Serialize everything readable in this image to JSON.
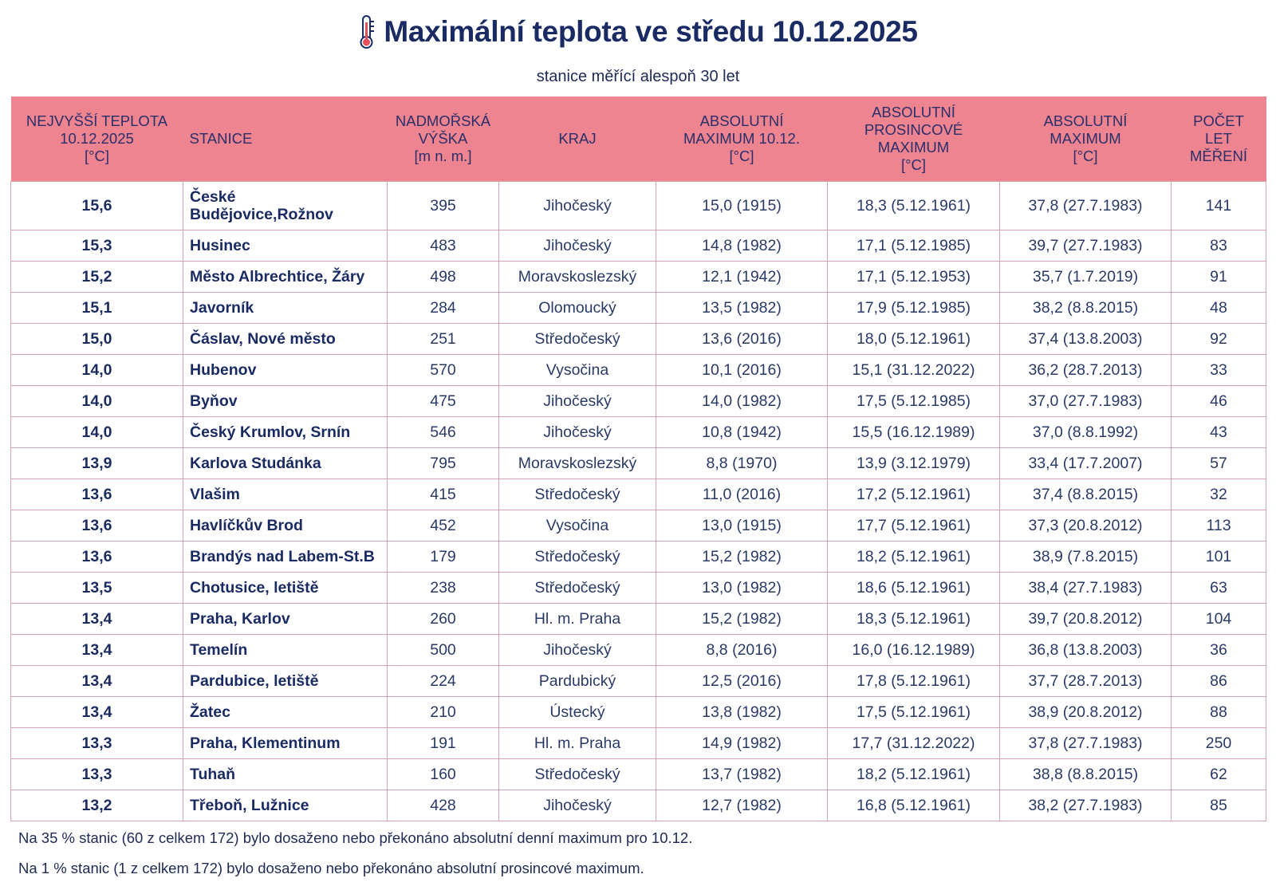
{
  "header": {
    "title": "Maximální teplota ve středu 10.12.2025",
    "icon": "thermometer-icon",
    "subtitle": "stanice měřící alespoň 30 let"
  },
  "colors": {
    "header_bg": "#ee8490",
    "title": "#1a2b63",
    "grid": "#d9a3ad"
  },
  "table": {
    "columns": [
      "NEJVYŠŠÍ TEPLOTA\n10.12.2025\n[°C]",
      "STANICE",
      "NADMOŘSKÁ\nVÝŠKA\n[m n. m.]",
      "KRAJ",
      "ABSOLUTNÍ\nMAXIMUM 10.12.\n[°C]",
      "ABSOLUTNÍ\nPROSINCOVÉ\nMAXIMUM\n[°C]",
      "ABSOLUTNÍ\nMAXIMUM\n[°C]",
      "POČET\nLET\nMĚŘENÍ"
    ],
    "rows": [
      [
        "15,6",
        "České Budějovice,Rožnov",
        "395",
        "Jihočeský",
        "15,0 (1915)",
        "18,3 (5.12.1961)",
        "37,8 (27.7.1983)",
        "141"
      ],
      [
        "15,3",
        "Husinec",
        "483",
        "Jihočeský",
        "14,8 (1982)",
        "17,1 (5.12.1985)",
        "39,7 (27.7.1983)",
        "83"
      ],
      [
        "15,2",
        "Město Albrechtice, Žáry",
        "498",
        "Moravskoslezský",
        "12,1 (1942)",
        "17,1 (5.12.1953)",
        "35,7 (1.7.2019)",
        "91"
      ],
      [
        "15,1",
        "Javorník",
        "284",
        "Olomoucký",
        "13,5 (1982)",
        "17,9 (5.12.1985)",
        "38,2 (8.8.2015)",
        "48"
      ],
      [
        "15,0",
        "Čáslav, Nové město",
        "251",
        "Středočeský",
        "13,6 (2016)",
        "18,0 (5.12.1961)",
        "37,4 (13.8.2003)",
        "92"
      ],
      [
        "14,0",
        "Hubenov",
        "570",
        "Vysočina",
        "10,1 (2016)",
        "15,1 (31.12.2022)",
        "36,2 (28.7.2013)",
        "33"
      ],
      [
        "14,0",
        "Byňov",
        "475",
        "Jihočeský",
        "14,0 (1982)",
        "17,5 (5.12.1985)",
        "37,0 (27.7.1983)",
        "46"
      ],
      [
        "14,0",
        "Český Krumlov, Srnín",
        "546",
        "Jihočeský",
        "10,8 (1942)",
        "15,5 (16.12.1989)",
        "37,0 (8.8.1992)",
        "43"
      ],
      [
        "13,9",
        "Karlova Studánka",
        "795",
        "Moravskoslezský",
        "8,8 (1970)",
        "13,9 (3.12.1979)",
        "33,4 (17.7.2007)",
        "57"
      ],
      [
        "13,6",
        "Vlašim",
        "415",
        "Středočeský",
        "11,0 (2016)",
        "17,2 (5.12.1961)",
        "37,4 (8.8.2015)",
        "32"
      ],
      [
        "13,6",
        "Havlíčkův Brod",
        "452",
        "Vysočina",
        "13,0 (1915)",
        "17,7 (5.12.1961)",
        "37,3 (20.8.2012)",
        "113"
      ],
      [
        "13,6",
        "Brandýs nad Labem-St.B",
        "179",
        "Středočeský",
        "15,2 (1982)",
        "18,2 (5.12.1961)",
        "38,9 (7.8.2015)",
        "101"
      ],
      [
        "13,5",
        "Chotusice, letiště",
        "238",
        "Středočeský",
        "13,0 (1982)",
        "18,6 (5.12.1961)",
        "38,4 (27.7.1983)",
        "63"
      ],
      [
        "13,4",
        "Praha, Karlov",
        "260",
        "Hl. m. Praha",
        "15,2 (1982)",
        "18,3 (5.12.1961)",
        "39,7 (20.8.2012)",
        "104"
      ],
      [
        "13,4",
        "Temelín",
        "500",
        "Jihočeský",
        "8,8 (2016)",
        "16,0 (16.12.1989)",
        "36,8 (13.8.2003)",
        "36"
      ],
      [
        "13,4",
        "Pardubice, letiště",
        "224",
        "Pardubický",
        "12,5 (2016)",
        "17,8 (5.12.1961)",
        "37,7 (28.7.2013)",
        "86"
      ],
      [
        "13,4",
        "Žatec",
        "210",
        "Ústecký",
        "13,8 (1982)",
        "17,5 (5.12.1961)",
        "38,9 (20.8.2012)",
        "88"
      ],
      [
        "13,3",
        "Praha, Klementinum",
        "191",
        "Hl. m. Praha",
        "14,9 (1982)",
        "17,7 (31.12.2022)",
        "37,8 (27.7.1983)",
        "250"
      ],
      [
        "13,3",
        "Tuhaň",
        "160",
        "Středočeský",
        "13,7 (1982)",
        "18,2 (5.12.1961)",
        "38,8 (8.8.2015)",
        "62"
      ],
      [
        "13,2",
        "Třeboň, Lužnice",
        "428",
        "Jihočeský",
        "12,7 (1982)",
        "16,8 (5.12.1961)",
        "38,2 (27.7.1983)",
        "85"
      ]
    ]
  },
  "notes": [
    "Na 35 % stanic (60 z celkem 172) bylo dosaženo nebo překonáno absolutní denní maximum pro 10.12.",
    "Na 1 % stanic (1 z celkem 172) bylo dosaženo nebo překonáno absolutní prosincové maximum."
  ]
}
